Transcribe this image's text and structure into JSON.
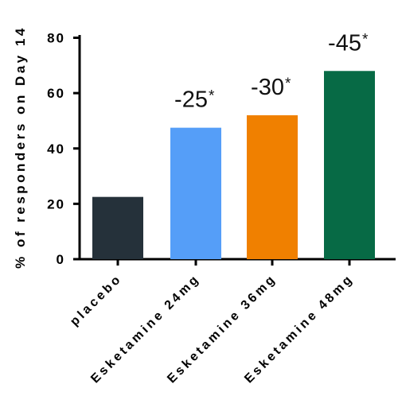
{
  "chart_data": {
    "type": "bar",
    "title": "",
    "xlabel": "",
    "ylabel": "% of responders on Day 14",
    "ylim": [
      0,
      80
    ],
    "yticks": [
      "0",
      "20",
      "40",
      "60",
      "80"
    ],
    "grid": false,
    "categories": [
      "placebo",
      "Esketamine 24mg",
      "Esketamine 36mg",
      "Esketamine 48mg"
    ],
    "values": [
      22.5,
      47.5,
      52,
      68
    ],
    "colors": [
      "#25313a",
      "#559ef8",
      "#f08000",
      "#076a45"
    ],
    "annotations": [
      {
        "text": "",
        "star": ""
      },
      {
        "text": "-25",
        "star": "*"
      },
      {
        "text": "-30",
        "star": "*"
      },
      {
        "text": "-45",
        "star": "*"
      }
    ]
  }
}
